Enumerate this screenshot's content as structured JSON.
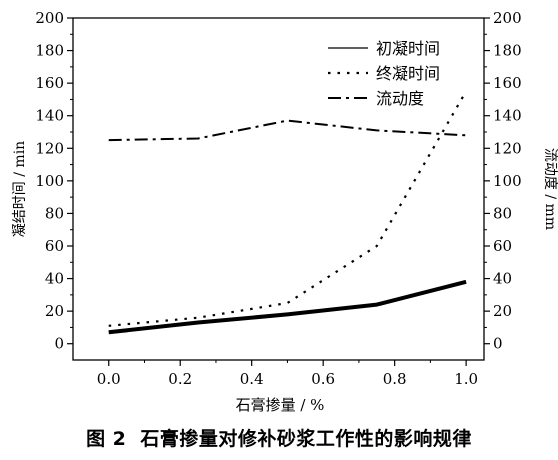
{
  "chart_data": {
    "type": "line",
    "xlabel": "石膏掺量 / %",
    "ylabel_left": "凝结时间 / min",
    "ylabel_right": "流动度 / mm",
    "xlim": [
      -0.1,
      1.05
    ],
    "ylim_left": [
      -10,
      200
    ],
    "ylim_right": [
      -10,
      200
    ],
    "x_ticks": [
      "0.0",
      "0.2",
      "0.4",
      "0.6",
      "0.8",
      "1.0"
    ],
    "y_ticks": [
      "0",
      "20",
      "40",
      "60",
      "80",
      "100",
      "120",
      "140",
      "160",
      "180",
      "200"
    ],
    "legend_position": "top-right",
    "grid": false,
    "series": [
      {
        "name": "初凝时间",
        "axis": "left",
        "style": "solid",
        "x": [
          0.0,
          0.25,
          0.5,
          0.75,
          1.0
        ],
        "y": [
          7,
          13,
          18,
          24,
          38
        ]
      },
      {
        "name": "终凝时间",
        "axis": "left",
        "style": "dotted",
        "x": [
          0.0,
          0.25,
          0.5,
          0.75,
          1.0
        ],
        "y": [
          11,
          16,
          25,
          60,
          155
        ]
      },
      {
        "name": "流动度",
        "axis": "right",
        "style": "dashdot",
        "x": [
          0.0,
          0.25,
          0.5,
          0.75,
          1.0
        ],
        "y": [
          125,
          126,
          137,
          131,
          128
        ]
      }
    ]
  },
  "caption": {
    "figure": "图 2",
    "text": "石膏掺量对修补砂浆工作性的影响规律"
  }
}
